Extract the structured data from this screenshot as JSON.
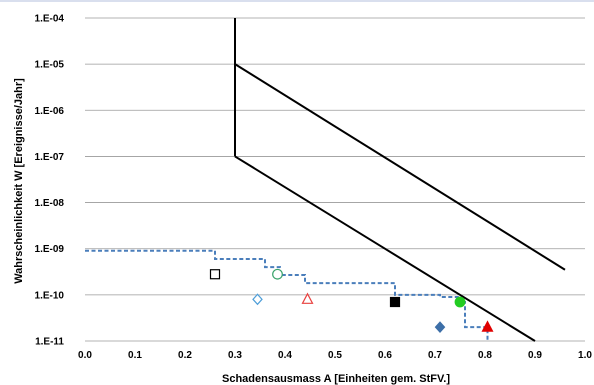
{
  "chart_data": {
    "type": "scatter",
    "title": "",
    "xlabel": "Schadensausmass A [Einheiten gem. StFV.]",
    "ylabel": "Wahrscheinlichkeit W [Ereignisse/Jahr]",
    "xlim": [
      0.0,
      1.0
    ],
    "ylim": [
      1e-11,
      0.0001
    ],
    "y_scale": "log",
    "grid": "horizontal",
    "legend": "none",
    "x_tick_labels": [
      "0.0",
      "0.1",
      "0.2",
      "0.3",
      "0.4",
      "0.5",
      "0.6",
      "0.7",
      "0.8",
      "0.9",
      "1.0"
    ],
    "y_tick_labels": [
      "1.E-11",
      "1.E-10",
      "1.E-09",
      "1.E-08",
      "1.E-07",
      "1.E-06",
      "1.E-05",
      "1.E-04"
    ],
    "criteria_lines": {
      "color": "#000000",
      "vertical": {
        "x": 0.3,
        "y": [
          1e-07,
          0.0001
        ]
      },
      "upper_diagonal": {
        "x": [
          0.3,
          0.96
        ],
        "y": [
          1e-05,
          3.5e-10
        ]
      },
      "lower_diagonal": {
        "x": [
          0.3,
          0.9
        ],
        "y": [
          1e-07,
          1e-11
        ]
      }
    },
    "cumulative_curve": {
      "color": "#4a7ebb",
      "style": "dashed-step",
      "x": [
        0.0,
        0.26,
        0.26,
        0.36,
        0.36,
        0.39,
        0.39,
        0.44,
        0.44,
        0.62,
        0.62,
        0.71,
        0.71,
        0.75,
        0.75,
        0.76,
        0.76,
        0.805,
        0.805
      ],
      "y": [
        9e-10,
        9e-10,
        6e-10,
        6e-10,
        4e-10,
        4e-10,
        2.7e-10,
        2.7e-10,
        1.8e-10,
        1.8e-10,
        1e-10,
        1e-10,
        9e-11,
        9e-11,
        7e-11,
        7e-11,
        2e-11,
        2e-11,
        1e-11
      ]
    },
    "points": [
      {
        "x": 0.26,
        "y": 2.8e-10,
        "marker": "square-open",
        "color": "#000000"
      },
      {
        "x": 0.385,
        "y": 2.8e-10,
        "marker": "circle-open",
        "color": "#3aa36b"
      },
      {
        "x": 0.345,
        "y": 8e-11,
        "marker": "diamond-open",
        "color": "#4f9fd9"
      },
      {
        "x": 0.445,
        "y": 8e-11,
        "marker": "triangle-open",
        "color": "#e8403f"
      },
      {
        "x": 0.62,
        "y": 7e-11,
        "marker": "square-filled",
        "color": "#000000"
      },
      {
        "x": 0.75,
        "y": 7e-11,
        "marker": "circle-filled",
        "color": "#22cc22"
      },
      {
        "x": 0.71,
        "y": 2e-11,
        "marker": "diamond-filled",
        "color": "#3d6fa8"
      },
      {
        "x": 0.805,
        "y": 2e-11,
        "marker": "triangle-filled",
        "color": "#e00000"
      }
    ]
  }
}
